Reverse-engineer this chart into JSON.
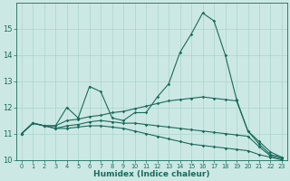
{
  "title": "",
  "xlabel": "Humidex (Indice chaleur)",
  "ylabel": "",
  "bg_color": "#cce8e4",
  "line_color": "#1a6b5a",
  "grid_color": "#aad4cc",
  "xlim": [
    -0.5,
    23.5
  ],
  "ylim": [
    10,
    16
  ],
  "yticks": [
    10,
    11,
    12,
    13,
    14,
    15
  ],
  "xticks": [
    0,
    1,
    2,
    3,
    4,
    5,
    6,
    7,
    8,
    9,
    10,
    11,
    12,
    13,
    14,
    15,
    16,
    17,
    18,
    19,
    20,
    21,
    22,
    23
  ],
  "line1_x": [
    0,
    1,
    2,
    3,
    4,
    5,
    6,
    7,
    8,
    9,
    10,
    11,
    12,
    13,
    14,
    15,
    16,
    17,
    18,
    19,
    20,
    21,
    22,
    23
  ],
  "line1_y": [
    11.0,
    11.4,
    11.3,
    11.3,
    12.0,
    11.6,
    12.8,
    12.6,
    11.6,
    11.5,
    11.8,
    11.8,
    12.4,
    12.9,
    14.1,
    14.8,
    15.6,
    15.3,
    14.0,
    12.3,
    11.1,
    10.6,
    10.2,
    10.1
  ],
  "line2_x": [
    0,
    1,
    2,
    3,
    4,
    5,
    6,
    7,
    8,
    9,
    10,
    11,
    12,
    13,
    14,
    15,
    16,
    17,
    18,
    19,
    20,
    21,
    22,
    23
  ],
  "line2_y": [
    11.0,
    11.4,
    11.3,
    11.3,
    11.5,
    11.55,
    11.65,
    11.7,
    11.8,
    11.85,
    11.95,
    12.05,
    12.15,
    12.25,
    12.3,
    12.35,
    12.4,
    12.35,
    12.3,
    12.25,
    11.1,
    10.7,
    10.3,
    10.1
  ],
  "line3_x": [
    0,
    1,
    2,
    3,
    4,
    5,
    6,
    7,
    8,
    9,
    10,
    11,
    12,
    13,
    14,
    15,
    16,
    17,
    18,
    19,
    20,
    21,
    22,
    23
  ],
  "line3_y": [
    11.0,
    11.4,
    11.3,
    11.2,
    11.3,
    11.35,
    11.45,
    11.5,
    11.45,
    11.4,
    11.4,
    11.35,
    11.3,
    11.25,
    11.2,
    11.15,
    11.1,
    11.05,
    11.0,
    10.95,
    10.9,
    10.5,
    10.15,
    10.05
  ],
  "line4_x": [
    0,
    1,
    2,
    3,
    4,
    5,
    6,
    7,
    8,
    9,
    10,
    11,
    12,
    13,
    14,
    15,
    16,
    17,
    18,
    19,
    20,
    21,
    22,
    23
  ],
  "line4_y": [
    11.0,
    11.4,
    11.3,
    11.2,
    11.2,
    11.25,
    11.3,
    11.3,
    11.25,
    11.2,
    11.1,
    11.0,
    10.9,
    10.8,
    10.7,
    10.6,
    10.55,
    10.5,
    10.45,
    10.4,
    10.35,
    10.2,
    10.1,
    10.0
  ]
}
